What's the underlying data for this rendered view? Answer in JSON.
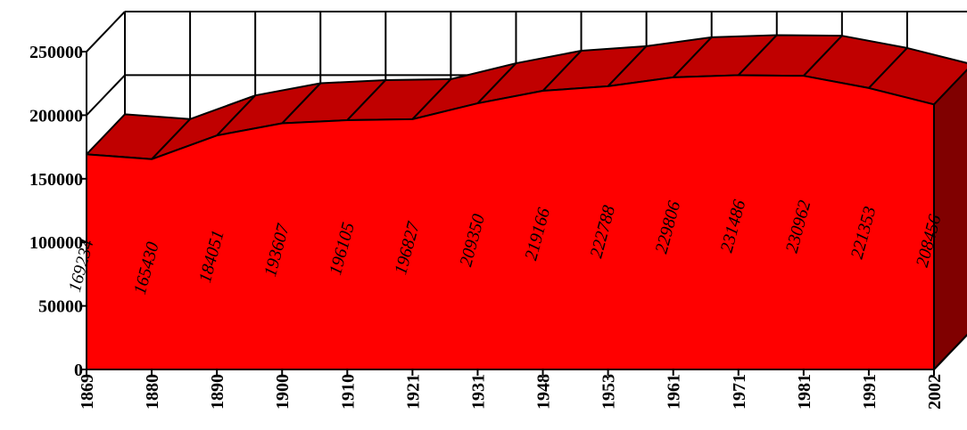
{
  "chart_data": {
    "type": "area",
    "style": "3d",
    "categories": [
      "1869",
      "1880",
      "1890",
      "1900",
      "1910",
      "1921",
      "1931",
      "1948",
      "1953",
      "1961",
      "1971",
      "1981",
      "1991",
      "2002"
    ],
    "series": [
      {
        "values": [
          169234,
          165430,
          184051,
          193607,
          196105,
          196827,
          209350,
          219166,
          222788,
          229806,
          231486,
          230962,
          221353,
          208456
        ],
        "color": "#ff0000"
      }
    ],
    "data_labels": [
      "169234",
      "165430",
      "184051",
      "193607",
      "196105",
      "196827",
      "209350",
      "219166",
      "222788",
      "229806",
      "231486",
      "230962",
      "221353",
      "208456"
    ],
    "ylim": [
      0,
      250000
    ],
    "yticks": [
      0,
      50000,
      100000,
      150000,
      200000,
      250000
    ],
    "ytick_labels": [
      "0",
      "50000",
      "100000",
      "150000",
      "200000",
      "250000"
    ],
    "grid": true,
    "legend": "none",
    "colors": {
      "front": "#ff0000",
      "top": "#c00000",
      "side": "#800000",
      "edge": "#000000"
    }
  }
}
